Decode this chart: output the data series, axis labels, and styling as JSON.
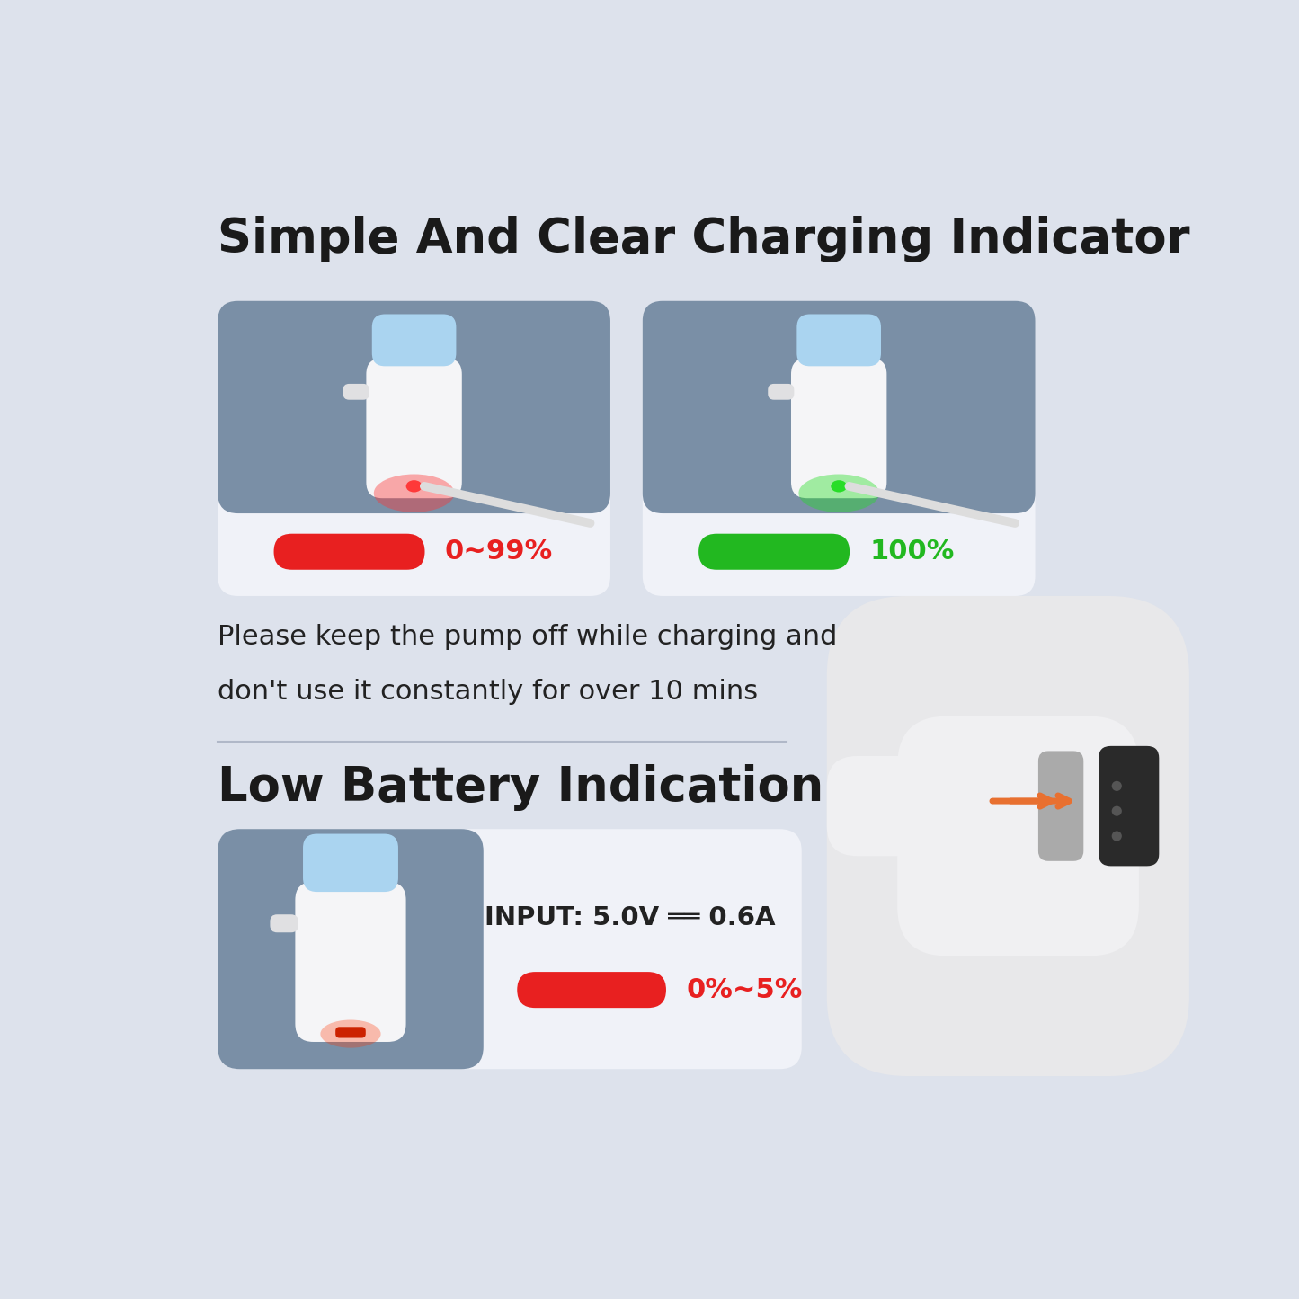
{
  "bg_color": "#dde2ec",
  "title1": "Simple And Clear Charging Indicator",
  "title1_fontsize": 38,
  "title2": "Low Battery Indication",
  "title2_fontsize": 38,
  "card_inner_bg": "#7a8fa6",
  "card_outer_bg": "#f0f2f8",
  "notice_text1": "Please keep the pump off while charging and",
  "notice_text2": "don't use it constantly for over 10 mins",
  "notice_fontsize": 22,
  "red_bar_label": "0~99%",
  "green_bar_label": "100%",
  "low_bar_label": "0%~5%",
  "input_text": "INPUT: 5.0V ══ 0.6A",
  "red_color": "#e82020",
  "green_color": "#22b820",
  "divider_color": "#b0b8c8",
  "pump_body_color": "#f5f5f7",
  "pump_cap_color": "#aad4f0",
  "nozzle_color": "#e0e0e2",
  "cable_color": "#dddddd",
  "text_dark": "#1a1a1a",
  "text_mid": "#222222"
}
